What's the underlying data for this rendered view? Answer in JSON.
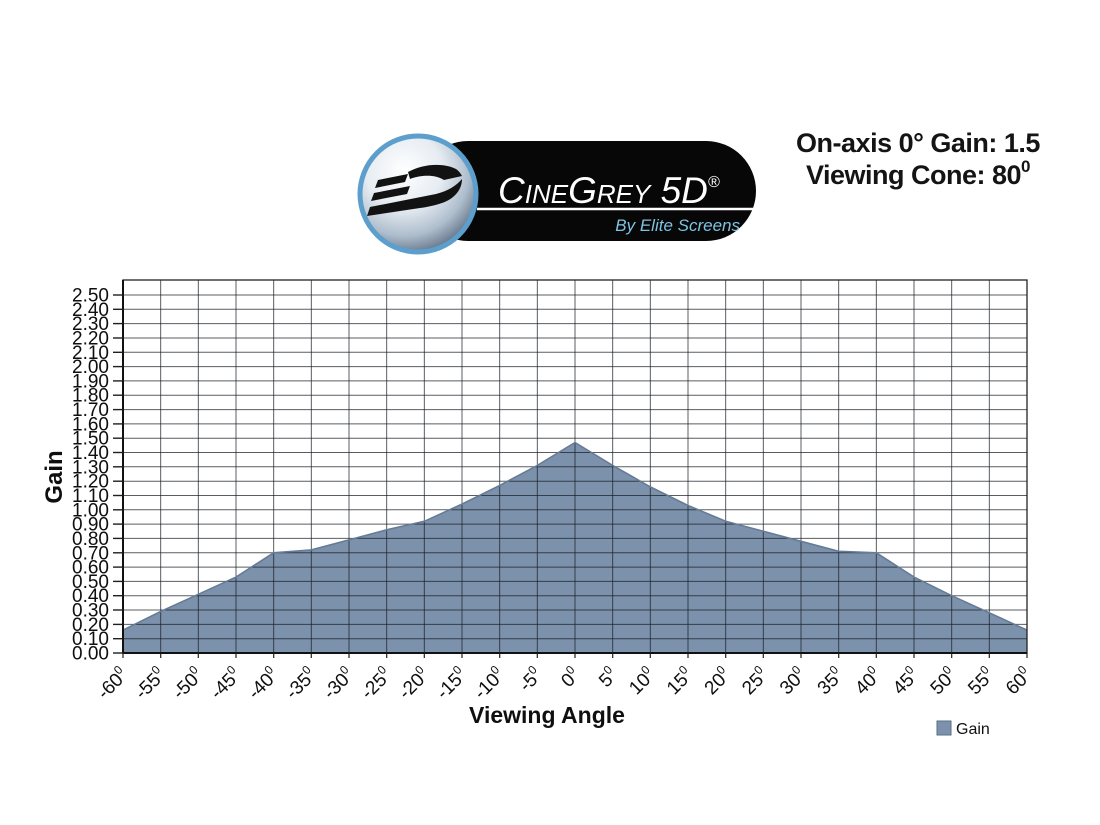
{
  "header": {
    "logo": {
      "name_parts": {
        "c": "C",
        "ine": "INE",
        "g": "G",
        "rey": "REY",
        "fived": " 5D",
        "reg": "®"
      },
      "tagline": "By Elite Screens",
      "tagline_color": "#7fc2e2",
      "pill_color": "#070707",
      "ring_color": "#5c9fcd"
    },
    "specs": {
      "line1": "On-axis 0° Gain: 1.5",
      "line2_main": "Viewing Cone: 80",
      "line2_sup": "0"
    }
  },
  "chart_data": {
    "type": "area",
    "title": "",
    "xlabel": "Viewing Angle",
    "ylabel": "Gain",
    "legend": [
      {
        "label": "Gain",
        "color": "#7C91AB"
      }
    ],
    "legend_position": "bottom-right",
    "categories": [
      "-60",
      "-55",
      "-50",
      "-45",
      "-40",
      "-35",
      "-30",
      "-25",
      "-20",
      "-15",
      "-10",
      "-5",
      "0",
      "5",
      "10",
      "15",
      "20",
      "25",
      "30",
      "35",
      "40",
      "45",
      "50",
      "55",
      "60"
    ],
    "degree_suffix": "0",
    "values": [
      0.16,
      0.29,
      0.41,
      0.53,
      0.7,
      0.72,
      0.79,
      0.86,
      0.92,
      1.04,
      1.17,
      1.31,
      1.47,
      1.31,
      1.16,
      1.03,
      0.92,
      0.85,
      0.78,
      0.71,
      0.7,
      0.53,
      0.4,
      0.28,
      0.16
    ],
    "ytick_labels": [
      "0.00",
      "0.10",
      "0.20",
      "0.30",
      "0.40",
      "0.50",
      "0.60",
      "0.70",
      "0.80",
      "0.90",
      "1.00",
      "1.10",
      "1.20",
      "1.30",
      "1.40",
      "1.50",
      "1.60",
      "1.70",
      "1.80",
      "1.90",
      "2.00",
      "2.10",
      "2.20",
      "2.30",
      "2.40",
      "2.50"
    ],
    "ylim": [
      0,
      2.5
    ],
    "ytick_step": 0.1,
    "grid": true,
    "area_fill": "#7C91AB",
    "area_edge": "#667b95",
    "grid_color": "rgba(25,30,38,0.72)",
    "axis_color": "#1a1a1a",
    "peak_value_on_axis": 1.5
  }
}
